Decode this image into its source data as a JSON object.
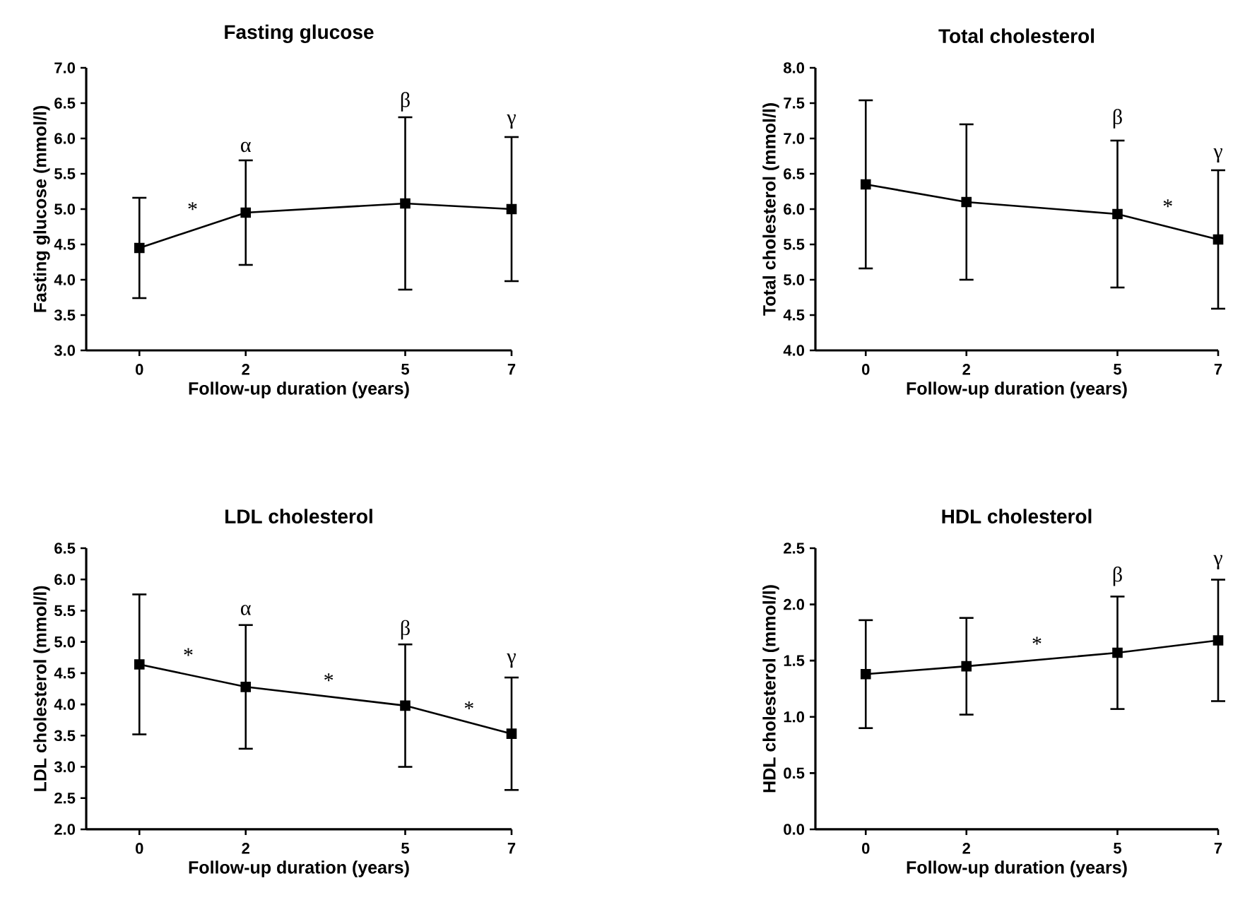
{
  "chart_data": [
    {
      "type": "line",
      "title": "Fasting glucose",
      "xlabel": "Follow-up duration (years)",
      "ylabel": "Fasting glucose (mmol/l)",
      "x": [
        0,
        2,
        5,
        7
      ],
      "values": [
        4.45,
        4.95,
        5.08,
        5.0
      ],
      "errors": [
        0.71,
        0.74,
        1.22,
        1.02
      ],
      "color": "#000000",
      "marker": "square",
      "line_style": "solid",
      "xlim": [
        -1,
        7
      ],
      "xticks": [
        0,
        2,
        5,
        7
      ],
      "ylim": [
        3.0,
        7.0
      ],
      "yticks": [
        {
          "value": 3.0,
          "label": "3.0"
        },
        {
          "value": 3.5,
          "label": "3.5"
        },
        {
          "value": 4.0,
          "label": "4.0"
        },
        {
          "value": 4.5,
          "label": "4.5"
        },
        {
          "value": 5.0,
          "label": "5.0"
        },
        {
          "value": 5.5,
          "label": "5.5"
        },
        {
          "value": 6.0,
          "label": "6.0"
        },
        {
          "value": 6.5,
          "label": "6.5"
        },
        {
          "value": 7.0,
          "label": "7.0"
        }
      ],
      "annotations": [
        "*",
        "α",
        "β",
        "γ"
      ]
    },
    {
      "type": "line",
      "title": "Total cholesterol",
      "xlabel": "Follow-up duration (years)",
      "ylabel": "Total cholesterol (mmol/l)",
      "x": [
        0,
        2,
        5,
        7
      ],
      "values": [
        6.35,
        6.1,
        5.93,
        5.57
      ],
      "errors": [
        1.19,
        1.1,
        1.04,
        0.98
      ],
      "color": "#000000",
      "marker": "square",
      "line_style": "solid",
      "xlim": [
        -1,
        7
      ],
      "xticks": [
        0,
        2,
        5,
        7
      ],
      "ylim": [
        4.0,
        8.0
      ],
      "yticks": [
        {
          "value": 4.0,
          "label": "4.0"
        },
        {
          "value": 4.5,
          "label": "4.5"
        },
        {
          "value": 5.0,
          "label": "5.0"
        },
        {
          "value": 5.5,
          "label": "5.5"
        },
        {
          "value": 6.0,
          "label": "6.0"
        },
        {
          "value": 6.5,
          "label": "6.5"
        },
        {
          "value": 7.0,
          "label": "7.0"
        },
        {
          "value": 7.5,
          "label": "7.5"
        },
        {
          "value": 8.0,
          "label": "8.0"
        }
      ],
      "annotations": [
        "β",
        "*",
        "γ"
      ]
    },
    {
      "type": "line",
      "title": "LDL cholesterol",
      "xlabel": "Follow-up duration (years)",
      "ylabel": "LDL cholesterol (mmol/l)",
      "x": [
        0,
        2,
        5,
        7
      ],
      "values": [
        4.64,
        4.28,
        3.98,
        3.53
      ],
      "errors": [
        1.12,
        0.99,
        0.98,
        0.9
      ],
      "color": "#000000",
      "marker": "square",
      "line_style": "solid",
      "xlim": [
        -1,
        7
      ],
      "xticks": [
        0,
        2,
        5,
        7
      ],
      "ylim": [
        2.0,
        6.5
      ],
      "yticks": [
        {
          "value": 2.0,
          "label": "2.0"
        },
        {
          "value": 2.5,
          "label": "2.5"
        },
        {
          "value": 3.0,
          "label": "3.0"
        },
        {
          "value": 3.5,
          "label": "3.5"
        },
        {
          "value": 4.0,
          "label": "4.0"
        },
        {
          "value": 4.5,
          "label": "4.5"
        },
        {
          "value": 5.0,
          "label": "5.0"
        },
        {
          "value": 5.5,
          "label": "5.5"
        },
        {
          "value": 6.0,
          "label": "6.0"
        },
        {
          "value": 6.5,
          "label": "6.5"
        }
      ],
      "annotations": [
        "*",
        "α",
        "*",
        "β",
        "*",
        "γ"
      ]
    },
    {
      "type": "line",
      "title": "HDL cholesterol",
      "xlabel": "Follow-up duration (years)",
      "ylabel": "HDL cholesterol (mmol/l)",
      "x": [
        0,
        2,
        5,
        7
      ],
      "values": [
        1.38,
        1.45,
        1.57,
        1.68
      ],
      "errors": [
        0.48,
        0.43,
        0.5,
        0.54
      ],
      "color": "#000000",
      "marker": "square",
      "line_style": "solid",
      "xlim": [
        -1,
        7
      ],
      "xticks": [
        0,
        2,
        5,
        7
      ],
      "ylim": [
        0.0,
        2.5
      ],
      "yticks": [
        {
          "value": 0.0,
          "label": "0.0"
        },
        {
          "value": 0.5,
          "label": "0.5"
        },
        {
          "value": 1.0,
          "label": "1.0"
        },
        {
          "value": 1.5,
          "label": "1.5"
        },
        {
          "value": 2.0,
          "label": "2.0"
        },
        {
          "value": 2.5,
          "label": "2.5"
        }
      ],
      "annotations": [
        "*",
        "β",
        "γ"
      ]
    }
  ]
}
